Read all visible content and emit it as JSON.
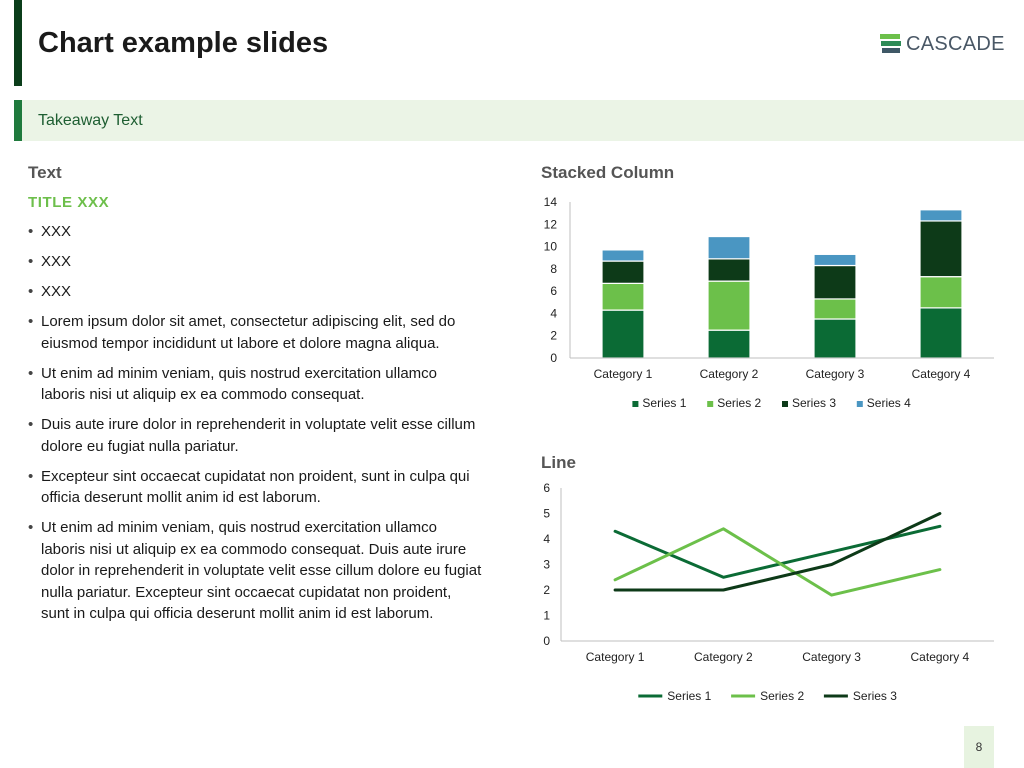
{
  "header": {
    "title": "Chart example slides",
    "logo_text": "CASCADE"
  },
  "takeaway": {
    "text": "Takeaway Text"
  },
  "left": {
    "section_label": "Text",
    "subtitle": "TITLE XXX",
    "bullets": [
      "XXX",
      "XXX",
      "XXX",
      "Lorem ipsum dolor sit amet, consectetur adipiscing elit, sed do eiusmod tempor incididunt ut labore et dolore magna aliqua.",
      "Ut enim ad minim veniam, quis nostrud exercitation ullamco laboris nisi ut aliquip ex ea commodo consequat.",
      "Duis aute irure dolor in reprehenderit in voluptate velit esse cillum dolore eu fugiat nulla pariatur.",
      "Excepteur sint occaecat cupidatat non proident, sunt in culpa qui officia deserunt mollit anim id est laborum.",
      "Ut enim ad minim veniam, quis nostrud exercitation ullamco laboris nisi ut aliquip ex ea commodo consequat. Duis aute irure dolor in reprehenderit in voluptate velit esse cillum dolore eu fugiat nulla pariatur. Excepteur sint occaecat cupidatat non proident, sunt in culpa qui officia deserunt mollit anim id est laborum."
    ]
  },
  "footer": {
    "page_number": "8"
  },
  "colors": {
    "series1": "#0b6b35",
    "series2": "#6cc04a",
    "series3": "#0d3a18",
    "series4": "#4a96c2",
    "accent": "#1f7a3d"
  },
  "chart_data": [
    {
      "type": "bar",
      "stacked": true,
      "title": "Stacked Column",
      "categories": [
        "Category 1",
        "Category 2",
        "Category 3",
        "Category 4"
      ],
      "series": [
        {
          "name": "Series 1",
          "values": [
            4.3,
            2.5,
            3.5,
            4.5
          ]
        },
        {
          "name": "Series 2",
          "values": [
            2.4,
            4.4,
            1.8,
            2.8
          ]
        },
        {
          "name": "Series 3",
          "values": [
            2.0,
            2.0,
            3.0,
            5.0
          ]
        },
        {
          "name": "Series 4",
          "values": [
            1.0,
            2.0,
            1.0,
            1.0
          ]
        }
      ],
      "yticks": [
        0,
        2,
        4,
        6,
        8,
        10,
        12,
        14
      ],
      "ylim": [
        0,
        14
      ],
      "legend": "bottom",
      "grid": false
    },
    {
      "type": "line",
      "title": "Line",
      "categories": [
        "Category 1",
        "Category 2",
        "Category 3",
        "Category 4"
      ],
      "series": [
        {
          "name": "Series 1",
          "values": [
            4.3,
            2.5,
            3.5,
            4.5
          ]
        },
        {
          "name": "Series 2",
          "values": [
            2.4,
            4.4,
            1.8,
            2.8
          ]
        },
        {
          "name": "Series 3",
          "values": [
            2.0,
            2.0,
            3.0,
            5.0
          ]
        }
      ],
      "yticks": [
        0,
        1,
        2,
        3,
        4,
        5,
        6
      ],
      "ylim": [
        0,
        6
      ],
      "legend": "bottom",
      "grid": false
    }
  ]
}
